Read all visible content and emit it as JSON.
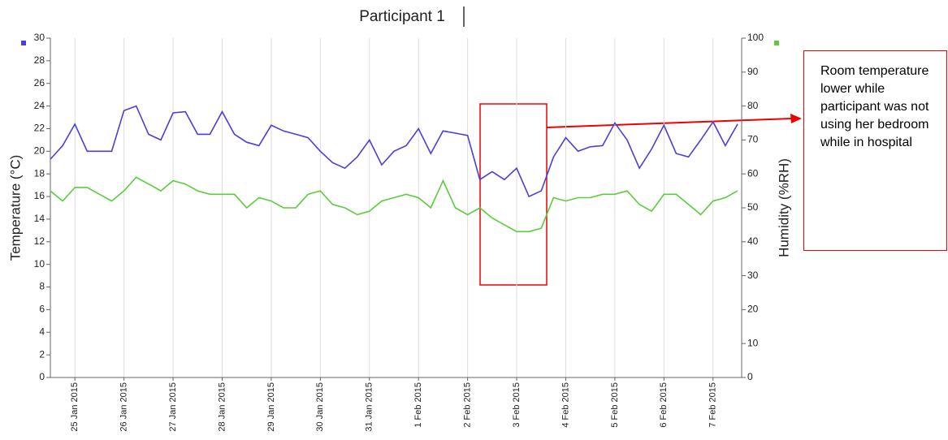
{
  "chart_data": {
    "type": "line",
    "title": "Participant 1",
    "ylabel": "Temperature (°C)",
    "y2label": "Humidity (%RH)",
    "annotation": "Room temperature lower while participant was not using her bedroom while in hospital",
    "grid": true,
    "x": [
      "2015-01-24T12:00",
      "2015-01-24T18:00",
      "2015-01-25T00:00",
      "2015-01-25T06:00",
      "2015-01-25T12:00",
      "2015-01-25T18:00",
      "2015-01-26T00:00",
      "2015-01-26T06:00",
      "2015-01-26T12:00",
      "2015-01-26T18:00",
      "2015-01-27T00:00",
      "2015-01-27T06:00",
      "2015-01-27T12:00",
      "2015-01-27T18:00",
      "2015-01-28T00:00",
      "2015-01-28T06:00",
      "2015-01-28T12:00",
      "2015-01-28T18:00",
      "2015-01-29T00:00",
      "2015-01-29T06:00",
      "2015-01-29T12:00",
      "2015-01-29T18:00",
      "2015-01-30T00:00",
      "2015-01-30T06:00",
      "2015-01-30T12:00",
      "2015-01-30T18:00",
      "2015-01-31T00:00",
      "2015-01-31T06:00",
      "2015-01-31T12:00",
      "2015-01-31T18:00",
      "2015-02-01T00:00",
      "2015-02-01T06:00",
      "2015-02-01T12:00",
      "2015-02-01T18:00",
      "2015-02-02T00:00",
      "2015-02-02T06:00",
      "2015-02-02T12:00",
      "2015-02-02T18:00",
      "2015-02-03T00:00",
      "2015-02-03T06:00",
      "2015-02-03T12:00",
      "2015-02-03T18:00",
      "2015-02-04T00:00",
      "2015-02-04T06:00",
      "2015-02-04T12:00",
      "2015-02-04T18:00",
      "2015-02-05T00:00",
      "2015-02-05T06:00",
      "2015-02-05T12:00",
      "2015-02-05T18:00",
      "2015-02-06T00:00",
      "2015-02-06T06:00",
      "2015-02-06T12:00",
      "2015-02-06T18:00",
      "2015-02-07T00:00",
      "2015-02-07T06:00",
      "2015-02-07T12:00"
    ],
    "series": [
      {
        "color": "#4a3fd8",
        "values": [
          19.3,
          20.5,
          22.4,
          20,
          20,
          20,
          23.6,
          24,
          21.5,
          21,
          23.4,
          23.5,
          21.5,
          21.5,
          23.5,
          21.5,
          20.8,
          20.5,
          22.3,
          21.8,
          21.5,
          21.2,
          20,
          19,
          18.5,
          19.5,
          21,
          18.8,
          20,
          20.5,
          22,
          19.8,
          21.8,
          21.6,
          21.4,
          17.5,
          18.2,
          17.5,
          18.5,
          16,
          16.5,
          19.5,
          21.2,
          20,
          20.4,
          20.5,
          22.5,
          21,
          18.5,
          20.2,
          22.3,
          19.8,
          19.5,
          21,
          22.6,
          20.5,
          22.4
        ]
      },
      {
        "color": "#5ccc3c",
        "axis": "y2",
        "values": [
          55,
          52,
          56,
          56,
          54,
          52,
          55,
          59,
          57,
          55,
          58,
          57,
          55,
          54,
          54,
          54,
          50,
          53,
          52,
          50,
          50,
          54,
          55,
          51,
          50,
          48,
          49,
          52,
          53,
          54,
          53,
          50,
          58,
          50,
          48,
          50,
          47,
          45,
          43,
          43,
          44,
          53,
          52,
          53,
          53,
          54,
          54,
          55,
          51,
          49,
          54,
          54,
          51,
          48,
          52,
          53,
          55
        ]
      }
    ],
    "xlim": [
      "2015-01-24T12:00",
      "2015-02-07T14:00"
    ],
    "xticks": [
      {
        "value": "2015-01-25T00:00",
        "label": "25 Jan 2015"
      },
      {
        "value": "2015-01-26T00:00",
        "label": "26 Jan 2015"
      },
      {
        "value": "2015-01-27T00:00",
        "label": "27 Jan 2015"
      },
      {
        "value": "2015-01-28T00:00",
        "label": "28 Jan 2015"
      },
      {
        "value": "2015-01-29T00:00",
        "label": "29 Jan 2015"
      },
      {
        "value": "2015-01-30T00:00",
        "label": "30 Jan 2015"
      },
      {
        "value": "2015-01-31T00:00",
        "label": "31 Jan 2015"
      },
      {
        "value": "2015-02-01T00:00",
        "label": "1 Feb 2015"
      },
      {
        "value": "2015-02-02T00:00",
        "label": "2 Feb 2015"
      },
      {
        "value": "2015-02-03T00:00",
        "label": "3 Feb 2015"
      },
      {
        "value": "2015-02-04T00:00",
        "label": "4 Feb 2015"
      },
      {
        "value": "2015-02-05T00:00",
        "label": "5 Feb 2015"
      },
      {
        "value": "2015-02-06T00:00",
        "label": "6 Feb 2015"
      },
      {
        "value": "2015-02-07T00:00",
        "label": "7 Feb 2015"
      }
    ],
    "ylim": [
      0,
      30
    ],
    "yticks": [
      0,
      2,
      4,
      6,
      8,
      10,
      12,
      14,
      16,
      18,
      20,
      22,
      24,
      26,
      28,
      30
    ],
    "y2lim": [
      0,
      100
    ],
    "y2ticks": [
      0,
      10,
      20,
      30,
      40,
      50,
      60,
      70,
      80,
      90,
      100
    ]
  }
}
